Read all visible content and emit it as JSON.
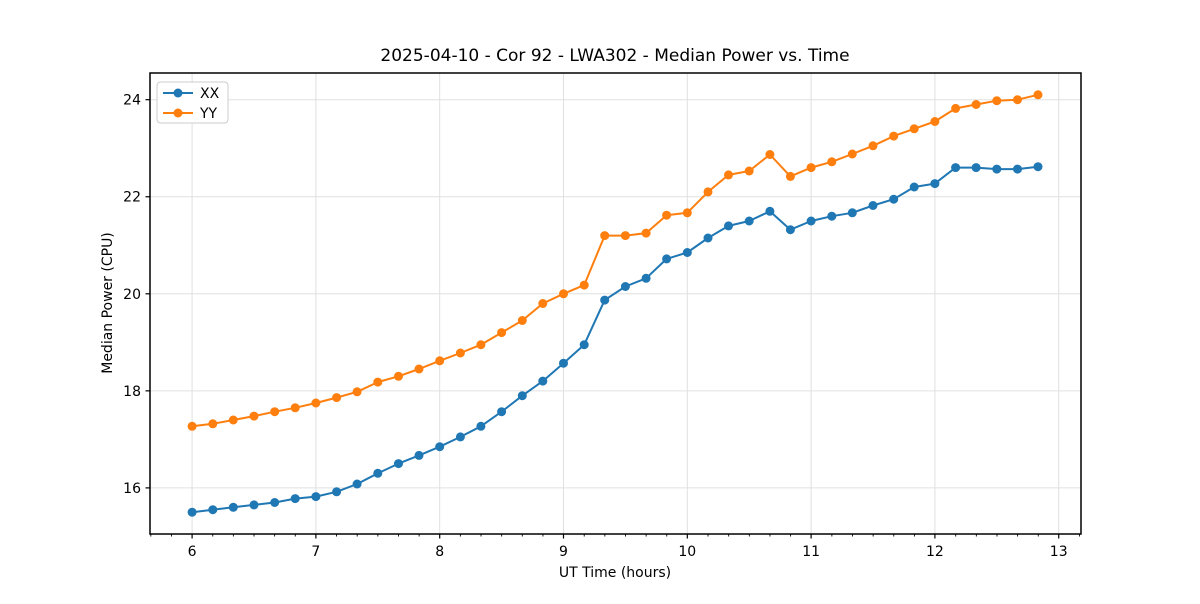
{
  "chart_data": {
    "type": "line",
    "title": "2025-04-10 - Cor 92 - LWA302 - Median Power vs. Time",
    "xlabel": "UT Time (hours)",
    "ylabel": "Median Power (CPU)",
    "xlim": [
      5.66,
      13.18
    ],
    "ylim": [
      15.05,
      24.55
    ],
    "xticks": [
      6,
      7,
      8,
      9,
      10,
      11,
      12,
      13
    ],
    "yticks": [
      16,
      18,
      20,
      22,
      24
    ],
    "x_minor_step": 0.1667,
    "grid": true,
    "legend_position": "upper left",
    "marker": "circle",
    "x": [
      6.0,
      6.167,
      6.333,
      6.5,
      6.667,
      6.833,
      7.0,
      7.167,
      7.333,
      7.5,
      7.667,
      7.833,
      8.0,
      8.167,
      8.333,
      8.5,
      8.667,
      8.833,
      9.0,
      9.167,
      9.333,
      9.5,
      9.667,
      9.833,
      10.0,
      10.167,
      10.333,
      10.5,
      10.667,
      10.833,
      11.0,
      11.167,
      11.333,
      11.5,
      11.667,
      11.833,
      12.0,
      12.167,
      12.333,
      12.5,
      12.667,
      12.833
    ],
    "series": [
      {
        "name": "XX",
        "color": "#1f77b4",
        "values": [
          15.5,
          15.55,
          15.6,
          15.65,
          15.7,
          15.78,
          15.82,
          15.92,
          16.08,
          16.3,
          16.5,
          16.67,
          16.85,
          17.05,
          17.27,
          17.57,
          17.9,
          18.2,
          18.57,
          18.95,
          19.87,
          20.15,
          20.32,
          20.72,
          20.85,
          21.15,
          21.4,
          21.5,
          21.7,
          21.32,
          21.5,
          21.6,
          21.67,
          21.82,
          21.95,
          22.2,
          22.27,
          22.6,
          22.6,
          22.57,
          22.57,
          22.62
        ]
      },
      {
        "name": "YY",
        "color": "#ff7f0e",
        "values": [
          17.27,
          17.32,
          17.4,
          17.48,
          17.57,
          17.65,
          17.75,
          17.86,
          17.98,
          18.18,
          18.3,
          18.45,
          18.62,
          18.78,
          18.95,
          19.2,
          19.45,
          19.8,
          20.0,
          20.18,
          21.2,
          21.2,
          21.25,
          21.62,
          21.67,
          22.1,
          22.45,
          22.53,
          22.87,
          22.42,
          22.6,
          22.72,
          22.88,
          23.05,
          23.25,
          23.4,
          23.55,
          23.82,
          23.9,
          23.98,
          24.0,
          24.1
        ]
      }
    ],
    "grid_color": "#e0e0e0",
    "spine_color": "#000000",
    "background_color": "#ffffff"
  }
}
